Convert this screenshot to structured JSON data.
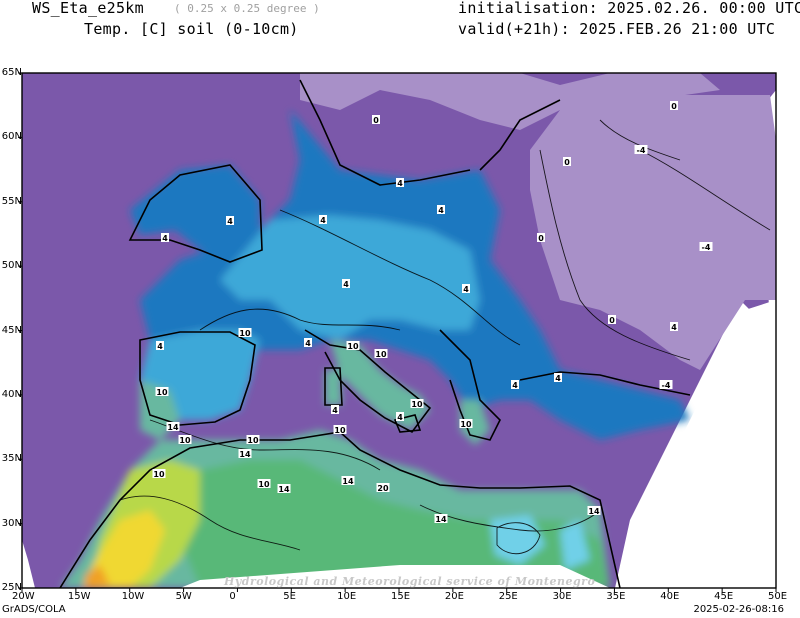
{
  "header": {
    "model_name": "WS_Eta_e25km",
    "resolution": "( 0.25 x 0.25 degree )",
    "field": "Temp. [C] soil (0-10cm)",
    "initialisation": "initialisation: 2025.02.26. 00:00 UTC",
    "valid": "valid(+21h): 2025.FEB.26 21:00 UTC"
  },
  "map": {
    "lon_labels": [
      "20W",
      "15W",
      "10W",
      "5W",
      "0",
      "5E",
      "10E",
      "15E",
      "20E",
      "25E",
      "30E",
      "35E",
      "40E",
      "45E",
      "50E"
    ],
    "lat_labels": [
      "65N",
      "60N",
      "55N",
      "50N",
      "45N",
      "40N",
      "35N",
      "30N",
      "25N"
    ],
    "contour_labels": [
      "0",
      "0",
      "0",
      "0",
      "0",
      "-4",
      "-4",
      "-4",
      "4",
      "4",
      "4",
      "4",
      "4",
      "4",
      "4",
      "4",
      "4",
      "4",
      "4",
      "4",
      "4",
      "4",
      "10",
      "10",
      "10",
      "10",
      "10",
      "10",
      "10",
      "10",
      "10",
      "10",
      "10",
      "14",
      "14",
      "14",
      "14",
      "14",
      "14",
      "20"
    ],
    "colors": {
      "purple_dark": "#7b58aa",
      "purple_light": "#a890c8",
      "blue_dark": "#1e78c0",
      "blue_mid": "#3ca8d8",
      "cyan": "#6fd0e8",
      "teal": "#68b8a0",
      "green": "#58b878",
      "yellow_green": "#b8d848",
      "yellow": "#f0d830",
      "orange": "#f0a028"
    }
  },
  "watermark": "Hydrological and Meteorological service of Montenegro",
  "footer": {
    "left": "GrADS/COLA",
    "right": "2025-02-26-08:16"
  }
}
